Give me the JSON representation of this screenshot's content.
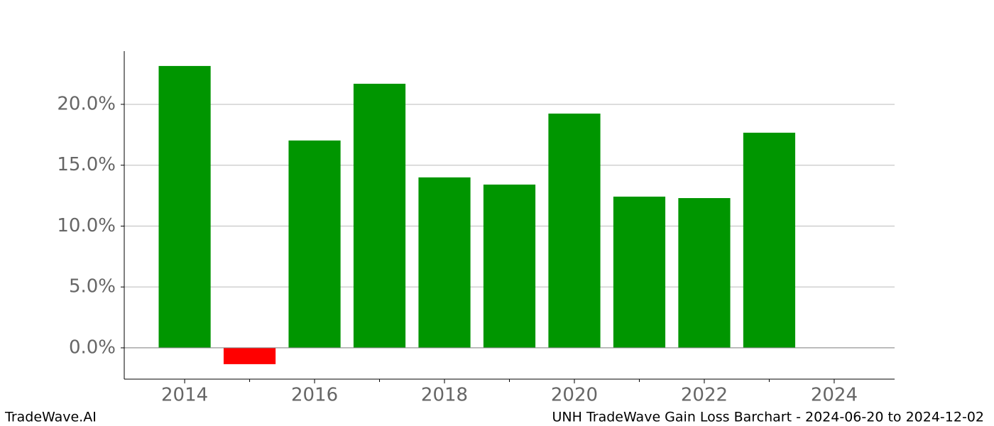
{
  "chart_data": {
    "type": "bar",
    "x": [
      2014,
      2015,
      2016,
      2017,
      2018,
      2019,
      2020,
      2021,
      2022,
      2023
    ],
    "values": [
      23.15,
      -1.34,
      17.03,
      21.69,
      14.0,
      13.41,
      19.24,
      12.42,
      12.3,
      17.67
    ],
    "color": "#009600",
    "negative_color": "#ff0000",
    "bar_width": 0.8,
    "xlim": [
      2013.07,
      2024.93
    ],
    "xticks": [
      2014,
      2016,
      2018,
      2020,
      2022,
      2024
    ],
    "xminor_ticks": [
      2015,
      2017,
      2019,
      2021,
      2023
    ],
    "ylim": [
      -2.57,
      24.37
    ],
    "yticks": [
      {
        "value": 0,
        "label": "0.0%"
      },
      {
        "value": 5,
        "label": "5.0%"
      },
      {
        "value": 10,
        "label": "10.0%"
      },
      {
        "value": 15,
        "label": "15.0%"
      },
      {
        "value": 20,
        "label": "20.0%"
      }
    ],
    "grid": true
  },
  "footer": {
    "left": "TradeWave.AI",
    "right": "UNH TradeWave Gain Loss Barchart - 2024-06-20 to 2024-12-02"
  }
}
